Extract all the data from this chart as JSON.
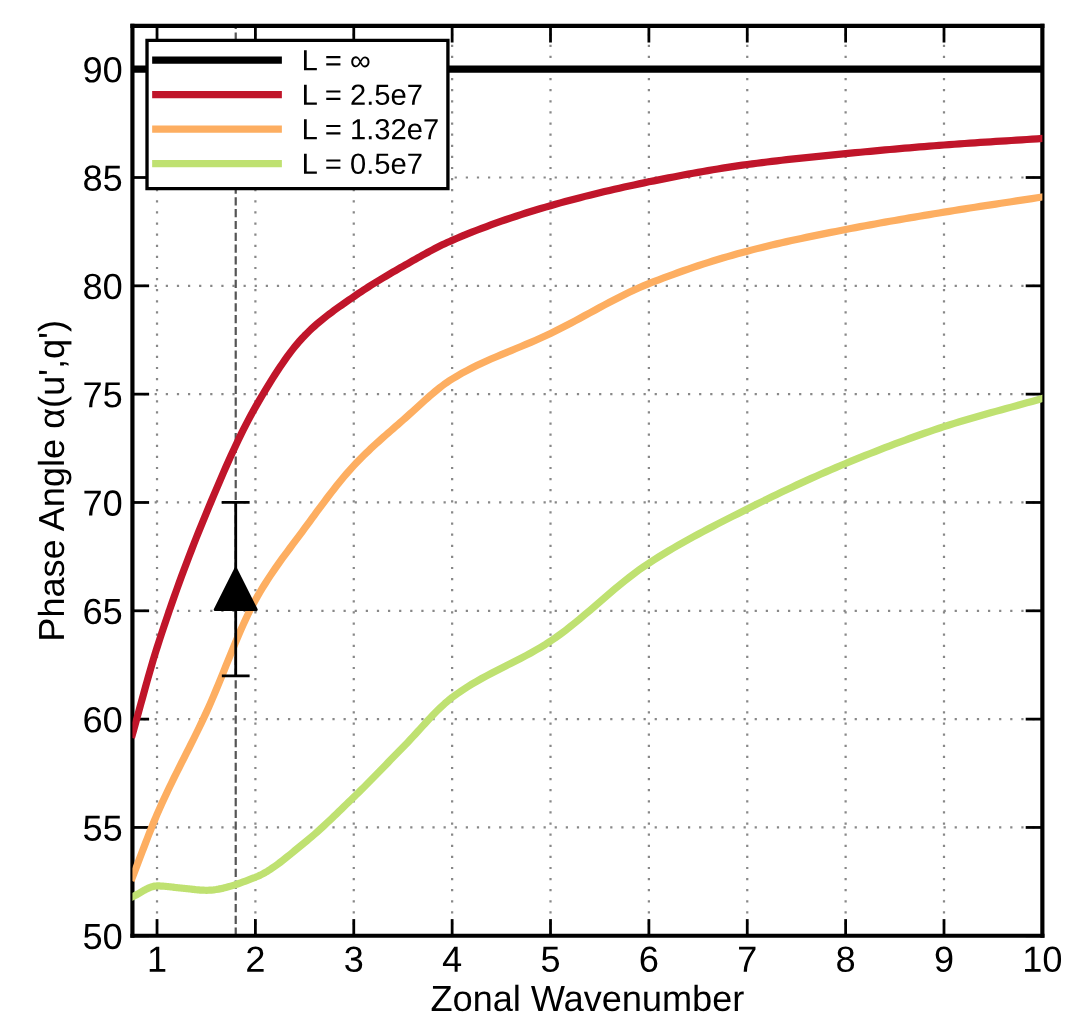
{
  "chart_data": {
    "type": "line",
    "xlabel": "Zonal Wavenumber",
    "ylabel": "Phase Angle α(u',q')",
    "xlim": [
      0.75,
      10
    ],
    "ylim": [
      50,
      92
    ],
    "xticks": [
      1,
      2,
      3,
      4,
      5,
      6,
      7,
      8,
      9,
      10
    ],
    "yticks": [
      50,
      55,
      60,
      65,
      70,
      75,
      80,
      85,
      90
    ],
    "grid": true,
    "legend": "top left",
    "line_style": "solid",
    "marker": "none",
    "series": [
      {
        "name": "L = ∞",
        "color": "#000000",
        "x": [
          0.75,
          10
        ],
        "values": [
          90,
          90
        ]
      },
      {
        "name": "L = 2.5e7",
        "color": "#c0152a",
        "x": [
          0.75,
          1,
          1.5,
          2,
          2.5,
          3,
          3.5,
          4,
          5,
          6,
          7,
          8,
          9,
          10
        ],
        "values": [
          59.3,
          63.3,
          69.5,
          74.4,
          77.7,
          79.5,
          80.9,
          82.1,
          83.7,
          84.8,
          85.6,
          86.1,
          86.5,
          86.8
        ]
      },
      {
        "name": "L = 1.32e7",
        "color": "#fdae61",
        "x": [
          0.75,
          1,
          1.5,
          2,
          2.5,
          3,
          3.5,
          4,
          5,
          6,
          7,
          8,
          9,
          10
        ],
        "values": [
          52.7,
          55.6,
          60.3,
          65.5,
          68.8,
          71.7,
          73.8,
          75.7,
          77.8,
          80.1,
          81.6,
          82.6,
          83.4,
          84.1
        ]
      },
      {
        "name": "L = 0.5e7",
        "color": "#bfe171",
        "x": [
          0.75,
          1,
          1.25,
          1.5,
          2,
          2.5,
          3,
          3.5,
          4,
          5,
          6,
          7,
          8,
          9,
          10
        ],
        "values": [
          51.8,
          52.3,
          52.2,
          52.1,
          52.7,
          54.3,
          56.4,
          58.7,
          61,
          63.6,
          67.2,
          69.7,
          71.8,
          73.5,
          74.8
        ]
      },
      {
        "type": "scatter",
        "color": "#000000",
        "marker": "triangle",
        "x": [
          1.8
        ],
        "values": [
          66
        ],
        "errors": [
          [
            62,
            70
          ]
        ]
      }
    ],
    "ref_lines": [
      {
        "axis": "x",
        "value": 1.8,
        "color": "#555555",
        "line_style": "dashed"
      }
    ]
  }
}
